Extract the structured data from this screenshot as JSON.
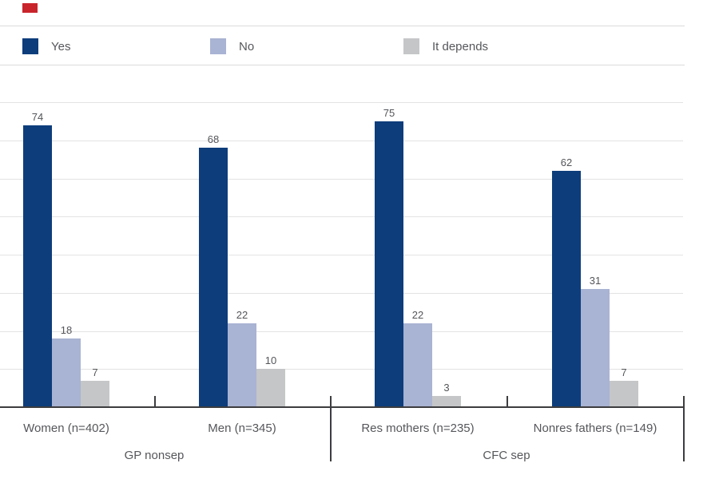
{
  "decoration": {
    "red_mark_color": "#c9242c"
  },
  "legend": {
    "position": "top",
    "items": [
      {
        "label": "Yes",
        "color": "#0d3d7b"
      },
      {
        "label": "No",
        "color": "#a9b3d3"
      },
      {
        "label": "It depends",
        "color": "#c5c6c8"
      }
    ]
  },
  "chart_data": {
    "type": "bar",
    "title": "",
    "xlabel": "",
    "ylabel": "",
    "categories": [
      "Women (n=402)",
      "Men (n=345)",
      "Res mothers (n=235)",
      "Nonres fathers (n=149)"
    ],
    "sections": [
      {
        "label": "GP nonsep",
        "category_indexes": [
          0,
          1
        ]
      },
      {
        "label": "CFC sep",
        "category_indexes": [
          2,
          3
        ]
      }
    ],
    "series": [
      {
        "name": "Yes",
        "color": "#0d3d7b",
        "values": [
          74,
          68,
          75,
          62
        ]
      },
      {
        "name": "No",
        "color": "#a9b3d3",
        "values": [
          18,
          22,
          22,
          31
        ]
      },
      {
        "name": "It depends",
        "color": "#c5c6c8",
        "values": [
          7,
          10,
          3,
          7
        ]
      }
    ],
    "ylim": [
      0,
      80
    ],
    "grid_step": 10,
    "grid": true,
    "y_tick_labels_shown": false,
    "value_labels": true,
    "legend_position": "top"
  },
  "colors": {
    "background": "#ffffff",
    "gridline": "#e3e3e3",
    "legend_rule": "#dbdbdb",
    "axis": "#3d3d3f",
    "label_text": "#56575b",
    "value_text": "#54555a"
  }
}
